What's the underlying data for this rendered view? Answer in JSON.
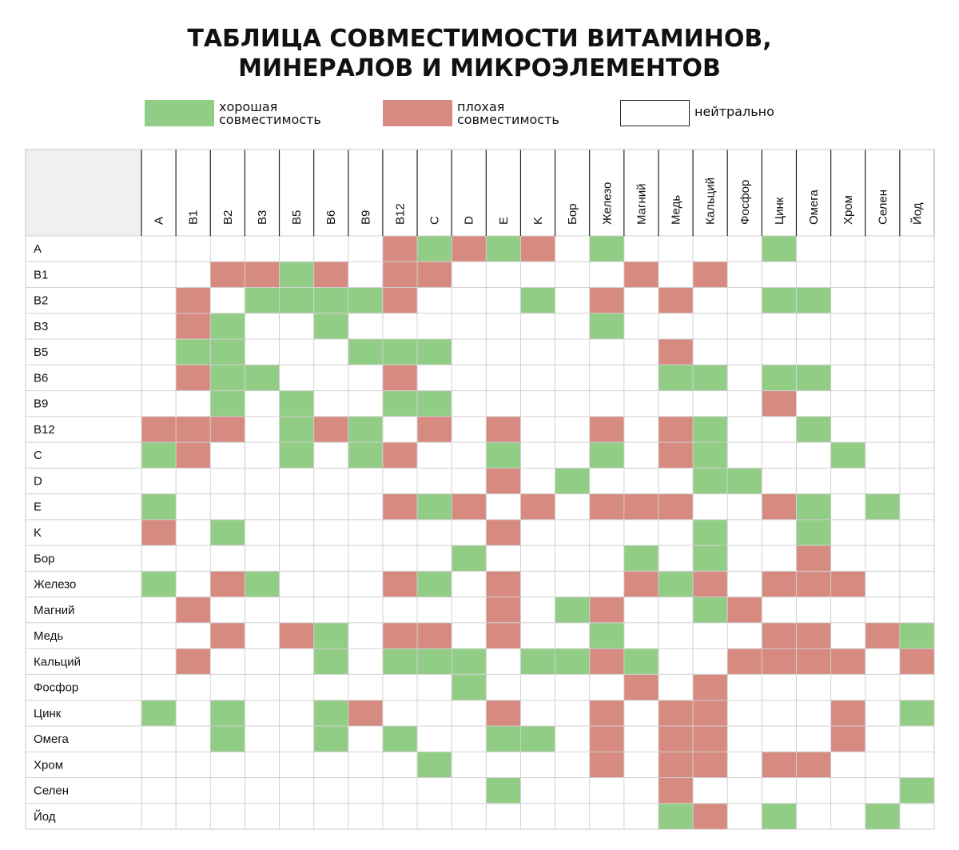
{
  "title": {
    "line1": "ТАБЛИЦА СОВМЕСТИМОСТИ ВИТАМИНОВ,",
    "line2": "МИНЕРАЛОВ И МИКРОЭЛЕМЕНТОВ"
  },
  "legend": {
    "good": {
      "line1": "хорошая",
      "line2": "совместимость",
      "color": "#92cd85"
    },
    "bad": {
      "line1": "плохая",
      "line2": "совместимость",
      "color": "#d78a80"
    },
    "neutral": {
      "label": "нейтрально",
      "color": "#ffffff"
    }
  },
  "colors": {
    "good": "#92cd85",
    "bad": "#d78a80",
    "neutral": "#ffffff",
    "grid": "#d0d0d0",
    "axis": "#222222"
  },
  "chart_data": {
    "type": "heatmap",
    "title": "ТАБЛИЦА СОВМЕСТИМОСТИ ВИТАМИНОВ, МИНЕРАЛОВ И МИКРОЭЛЕМЕНТОВ",
    "columns": [
      "A",
      "B1",
      "B2",
      "B3",
      "B5",
      "B6",
      "B9",
      "B12",
      "C",
      "D",
      "E",
      "K",
      "Бор",
      "Железо",
      "Магний",
      "Медь",
      "Кальций",
      "Фосфор",
      "Цинк",
      "Омега",
      "Хром",
      "Селен",
      "Йод"
    ],
    "rows": [
      "A",
      "B1",
      "B2",
      "B3",
      "B5",
      "B6",
      "B9",
      "B12",
      "C",
      "D",
      "E",
      "K",
      "Бор",
      "Железо",
      "Магний",
      "Медь",
      "Кальций",
      "Фосфор",
      "Цинк",
      "Омега",
      "Хром",
      "Селен",
      "Йод"
    ],
    "legend": {
      "G": "хорошая совместимость",
      "B": "плохая совместимость",
      "N": "нейтрально"
    },
    "cells": [
      [
        "N",
        "N",
        "N",
        "N",
        "N",
        "N",
        "N",
        "B",
        "G",
        "B",
        "G",
        "B",
        "N",
        "G",
        "N",
        "N",
        "N",
        "N",
        "G",
        "N",
        "N",
        "N",
        "N"
      ],
      [
        "N",
        "N",
        "B",
        "B",
        "G",
        "B",
        "N",
        "B",
        "B",
        "N",
        "N",
        "N",
        "N",
        "N",
        "B",
        "N",
        "B",
        "N",
        "N",
        "N",
        "N",
        "N",
        "N"
      ],
      [
        "N",
        "B",
        "N",
        "G",
        "G",
        "G",
        "G",
        "B",
        "N",
        "N",
        "N",
        "G",
        "N",
        "B",
        "N",
        "B",
        "N",
        "N",
        "G",
        "G",
        "N",
        "N",
        "N"
      ],
      [
        "N",
        "B",
        "G",
        "N",
        "N",
        "G",
        "N",
        "N",
        "N",
        "N",
        "N",
        "N",
        "N",
        "G",
        "N",
        "N",
        "N",
        "N",
        "N",
        "N",
        "N",
        "N",
        "N"
      ],
      [
        "N",
        "G",
        "G",
        "N",
        "N",
        "N",
        "G",
        "G",
        "G",
        "N",
        "N",
        "N",
        "N",
        "N",
        "N",
        "B",
        "N",
        "N",
        "N",
        "N",
        "N",
        "N",
        "N"
      ],
      [
        "N",
        "B",
        "G",
        "G",
        "N",
        "N",
        "N",
        "B",
        "N",
        "N",
        "N",
        "N",
        "N",
        "N",
        "N",
        "G",
        "G",
        "N",
        "G",
        "G",
        "N",
        "N",
        "N"
      ],
      [
        "N",
        "N",
        "G",
        "N",
        "G",
        "N",
        "N",
        "G",
        "G",
        "N",
        "N",
        "N",
        "N",
        "N",
        "N",
        "N",
        "N",
        "N",
        "B",
        "N",
        "N",
        "N",
        "N"
      ],
      [
        "B",
        "B",
        "B",
        "N",
        "G",
        "B",
        "G",
        "N",
        "B",
        "N",
        "B",
        "N",
        "N",
        "B",
        "N",
        "B",
        "G",
        "N",
        "N",
        "G",
        "N",
        "N",
        "N"
      ],
      [
        "G",
        "B",
        "N",
        "N",
        "G",
        "N",
        "G",
        "B",
        "N",
        "N",
        "G",
        "N",
        "N",
        "G",
        "N",
        "B",
        "G",
        "N",
        "N",
        "N",
        "G",
        "N",
        "N"
      ],
      [
        "N",
        "N",
        "N",
        "N",
        "N",
        "N",
        "N",
        "N",
        "N",
        "N",
        "B",
        "N",
        "G",
        "N",
        "N",
        "N",
        "G",
        "G",
        "N",
        "N",
        "N",
        "N",
        "N"
      ],
      [
        "G",
        "N",
        "N",
        "N",
        "N",
        "N",
        "N",
        "B",
        "G",
        "B",
        "N",
        "B",
        "N",
        "B",
        "B",
        "B",
        "N",
        "N",
        "B",
        "G",
        "N",
        "G",
        "N"
      ],
      [
        "B",
        "N",
        "G",
        "N",
        "N",
        "N",
        "N",
        "N",
        "N",
        "N",
        "B",
        "N",
        "N",
        "N",
        "N",
        "N",
        "G",
        "N",
        "N",
        "G",
        "N",
        "N",
        "N"
      ],
      [
        "N",
        "N",
        "N",
        "N",
        "N",
        "N",
        "N",
        "N",
        "N",
        "G",
        "N",
        "N",
        "N",
        "N",
        "G",
        "N",
        "G",
        "N",
        "N",
        "B",
        "N",
        "N",
        "N"
      ],
      [
        "G",
        "N",
        "B",
        "G",
        "N",
        "N",
        "N",
        "B",
        "G",
        "N",
        "B",
        "N",
        "N",
        "N",
        "B",
        "G",
        "B",
        "N",
        "B",
        "B",
        "B",
        "N",
        "N"
      ],
      [
        "N",
        "B",
        "N",
        "N",
        "N",
        "N",
        "N",
        "N",
        "N",
        "N",
        "B",
        "N",
        "G",
        "B",
        "N",
        "N",
        "G",
        "B",
        "N",
        "N",
        "N",
        "N",
        "N"
      ],
      [
        "N",
        "N",
        "B",
        "N",
        "B",
        "G",
        "N",
        "B",
        "B",
        "N",
        "B",
        "N",
        "N",
        "G",
        "N",
        "N",
        "N",
        "N",
        "B",
        "B",
        "N",
        "B",
        "G"
      ],
      [
        "N",
        "B",
        "N",
        "N",
        "N",
        "G",
        "N",
        "G",
        "G",
        "G",
        "N",
        "G",
        "G",
        "B",
        "G",
        "N",
        "N",
        "B",
        "B",
        "B",
        "B",
        "N",
        "B"
      ],
      [
        "N",
        "N",
        "N",
        "N",
        "N",
        "N",
        "N",
        "N",
        "N",
        "G",
        "N",
        "N",
        "N",
        "N",
        "B",
        "N",
        "B",
        "N",
        "N",
        "N",
        "N",
        "N",
        "N"
      ],
      [
        "G",
        "N",
        "G",
        "N",
        "N",
        "G",
        "B",
        "N",
        "N",
        "N",
        "B",
        "N",
        "N",
        "B",
        "N",
        "B",
        "B",
        "N",
        "N",
        "N",
        "B",
        "N",
        "G"
      ],
      [
        "N",
        "N",
        "G",
        "N",
        "N",
        "G",
        "N",
        "G",
        "N",
        "N",
        "G",
        "G",
        "N",
        "B",
        "N",
        "B",
        "B",
        "N",
        "N",
        "N",
        "B",
        "N",
        "N"
      ],
      [
        "N",
        "N",
        "N",
        "N",
        "N",
        "N",
        "N",
        "N",
        "G",
        "N",
        "N",
        "N",
        "N",
        "B",
        "N",
        "B",
        "B",
        "N",
        "B",
        "B",
        "N",
        "N",
        "N"
      ],
      [
        "N",
        "N",
        "N",
        "N",
        "N",
        "N",
        "N",
        "N",
        "N",
        "N",
        "G",
        "N",
        "N",
        "N",
        "N",
        "B",
        "N",
        "N",
        "N",
        "N",
        "N",
        "N",
        "G"
      ],
      [
        "N",
        "N",
        "N",
        "N",
        "N",
        "N",
        "N",
        "N",
        "N",
        "N",
        "N",
        "N",
        "N",
        "N",
        "N",
        "G",
        "B",
        "N",
        "G",
        "N",
        "N",
        "G",
        "N"
      ]
    ]
  }
}
